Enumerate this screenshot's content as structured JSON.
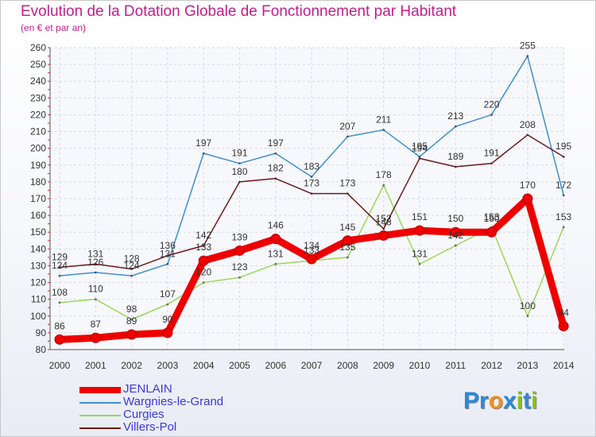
{
  "title": "Evolution de la Dotation Globale de Fonctionnement par Habitant",
  "subtitle": "(en € et par an)",
  "logo": {
    "letters": [
      "P",
      "r",
      "o",
      "x",
      "i",
      "t",
      "i"
    ],
    "colors": [
      "#2a8ad8",
      "#2a8ad8",
      "#f09020",
      "#2a8ad8",
      "#88c020",
      "#2a8ad8",
      "#88c020"
    ]
  },
  "chart_data": {
    "type": "line",
    "x": [
      "2000",
      "2001",
      "2002",
      "2003",
      "2004",
      "2005",
      "2006",
      "2007",
      "2008",
      "2009",
      "2010",
      "2011",
      "2012",
      "2013",
      "2014"
    ],
    "ylim": [
      80,
      260
    ],
    "yticks": [
      80,
      90,
      100,
      110,
      120,
      130,
      140,
      150,
      160,
      170,
      180,
      190,
      200,
      210,
      220,
      230,
      240,
      250,
      260
    ],
    "grid": true,
    "legend": "bottom-left",
    "series": [
      {
        "name": "Wargnies-le-Grand",
        "color": "#3d8fd1",
        "width": 1.5,
        "marker": 5,
        "values": [
          124,
          126,
          124,
          131,
          197,
          191,
          197,
          183,
          207,
          211,
          195,
          213,
          220,
          255,
          172
        ]
      },
      {
        "name": "Curgies",
        "color": "#9ad85a",
        "width": 1.5,
        "marker": 5,
        "values": [
          108,
          110,
          98,
          107,
          120,
          123,
          131,
          133,
          135,
          178,
          131,
          142,
          153,
          100,
          153
        ]
      },
      {
        "name": "Villers-Pol",
        "color": "#6b1a1a",
        "width": 1.5,
        "marker": 5,
        "values": [
          129,
          131,
          128,
          136,
          142,
          180,
          182,
          173,
          173,
          152,
          194,
          189,
          191,
          208,
          195
        ]
      },
      {
        "name": "JENLAIN",
        "color": "#ee0000",
        "width": 9,
        "marker": 12,
        "values": [
          86,
          87,
          89,
          90,
          133,
          139,
          146,
          134,
          145,
          148,
          151,
          150,
          150,
          170,
          94
        ]
      }
    ]
  }
}
